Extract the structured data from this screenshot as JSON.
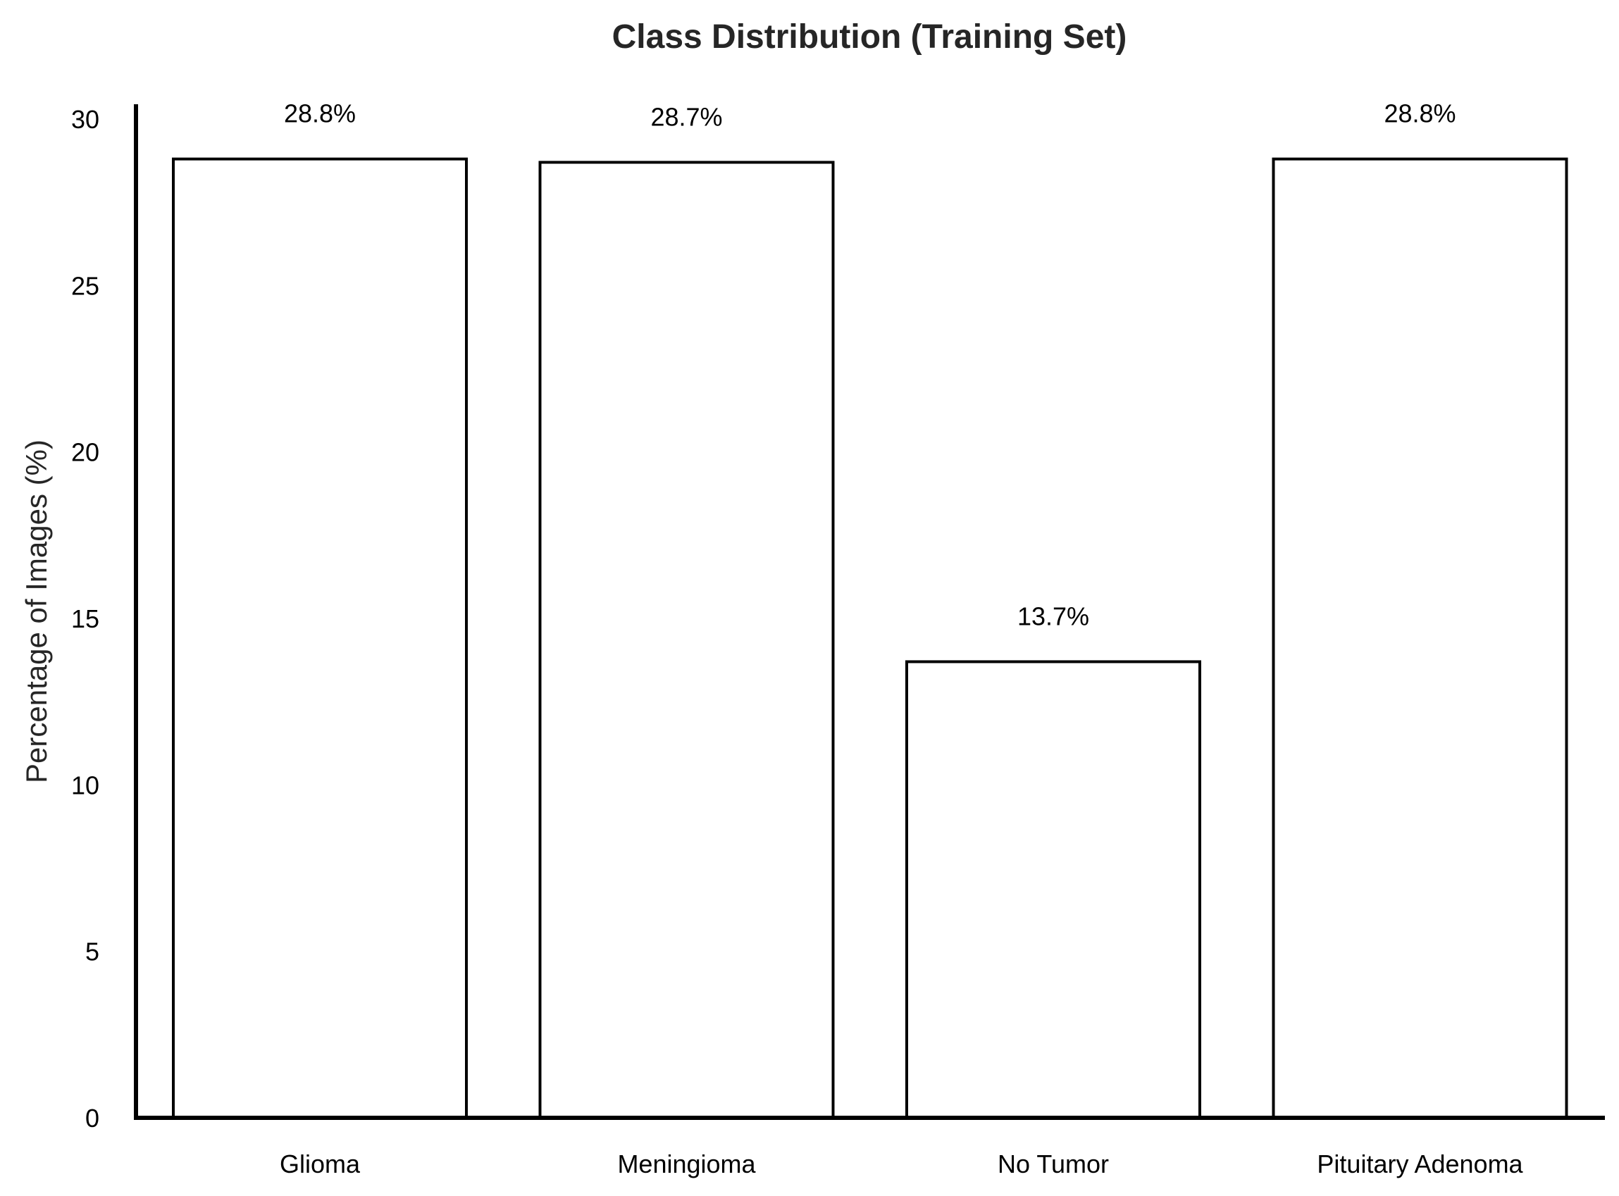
{
  "chart_data": {
    "type": "bar",
    "title": "Class Distribution (Training Set)",
    "xlabel": "",
    "ylabel": "Percentage of Images (%)",
    "categories": [
      "Glioma",
      "Meningioma",
      "No Tumor",
      "Pituitary Adenoma"
    ],
    "values": [
      28.8,
      28.7,
      13.7,
      28.8
    ],
    "value_labels": [
      "28.8%",
      "28.7%",
      "13.7%",
      "28.8%"
    ],
    "ylim": [
      0,
      30
    ],
    "yticks": [
      0,
      5,
      10,
      15,
      20,
      25,
      30
    ],
    "grid": false,
    "legend": "none",
    "colors": {
      "bar_fill": "#ffffff",
      "bar_edge": "#000000",
      "axis": "#000000",
      "title": "#262626"
    }
  }
}
